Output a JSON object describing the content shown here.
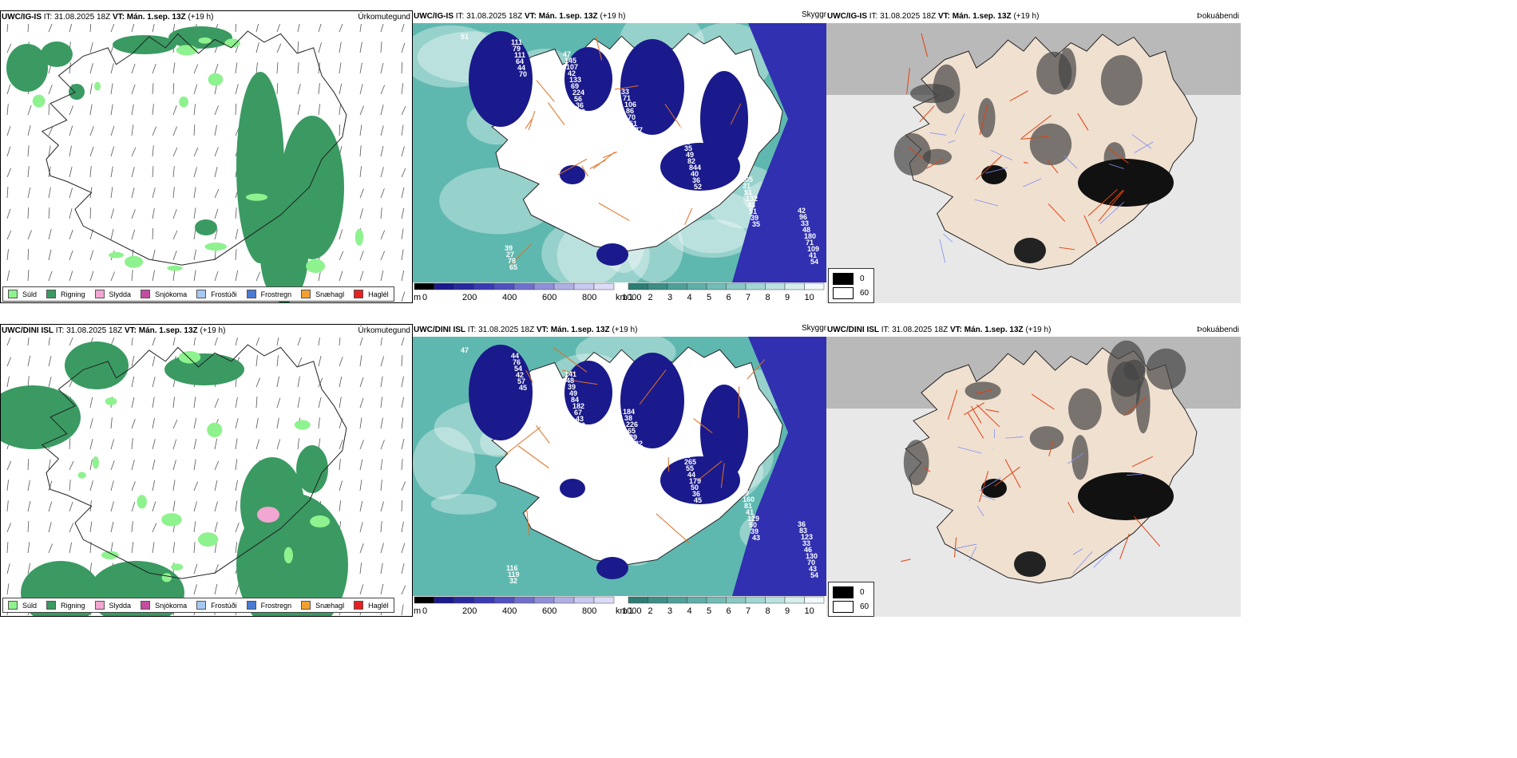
{
  "rows": [
    {
      "model": "UWC/IG-IS",
      "panels": [
        {
          "id": "precip",
          "model": "UWC/IG-IS",
          "init": "IT: 31.08.2025 18Z",
          "valid_label": "VT:",
          "valid": "Mán. 1.sep. 13Z",
          "lead": "(+19 h)",
          "product": "Úrkomutegund"
        },
        {
          "id": "vis",
          "model": "UWC/IG-IS",
          "init": "IT: 31.08.2025 18Z",
          "valid_label": "VT:",
          "valid": "Mán. 1.sep. 13Z",
          "lead": "(+19 h)",
          "product": "Skyggni"
        },
        {
          "id": "cloud",
          "model": "UWC/IG-IS",
          "init": "IT: 31.08.2025 18Z",
          "valid_label": "VT:",
          "valid": "Mán. 1.sep. 13Z",
          "lead": "(+19 h)",
          "product": "Þokuábendi"
        }
      ],
      "vis_labels": [
        "51",
        "70",
        "49",
        "42",
        "52",
        "35",
        "54",
        "44",
        "36",
        "48",
        "36",
        "39",
        "41",
        "64",
        "56",
        "39",
        "40",
        "51",
        "109",
        "111",
        "224",
        "277",
        "844",
        "43",
        "71",
        "79",
        "69",
        "51",
        "82",
        "132",
        "180",
        "111",
        "133",
        "70",
        "49",
        "51",
        "48",
        "65",
        "42",
        "86",
        "35",
        "31",
        "33",
        "78",
        "107",
        "106",
        "75",
        "105",
        "96",
        "27",
        "145",
        "71",
        "34",
        "62",
        "42",
        "39",
        "47",
        "33",
        "53"
      ]
    },
    {
      "model": "UWC/DINI ISL",
      "panels": [
        {
          "id": "precip",
          "model": "UWC/DINI ISL",
          "init": "IT: 31.08.2025 18Z",
          "valid_label": "VT:",
          "valid": "Mán. 1.sep. 13Z",
          "lead": "(+19 h)",
          "product": "Úrkomutegund"
        },
        {
          "id": "vis",
          "model": "UWC/DINI ISL",
          "init": "IT: 31.08.2025 18Z",
          "valid_label": "VT:",
          "valid": "Mán. 1.sep. 13Z",
          "lead": "(+19 h)",
          "product": "Skyggni"
        },
        {
          "id": "cloud",
          "model": "UWC/DINI ISL",
          "init": "IT: 31.08.2025 18Z",
          "valid_label": "VT:",
          "valid": "Mán. 1.sep. 13Z",
          "lead": "(+19 h)",
          "product": "Þokuábendi"
        }
      ],
      "vis_labels": [
        "47",
        "45",
        "40",
        "52",
        "45",
        "43",
        "54",
        "57",
        "43",
        "43",
        "36",
        "39",
        "43",
        "42",
        "67",
        "54",
        "50",
        "50",
        "70",
        "54",
        "182",
        "132",
        "179",
        "129",
        "130",
        "76",
        "84",
        "39",
        "44",
        "41",
        "46",
        "44",
        "49",
        "65",
        "55",
        "81",
        "33",
        "32",
        "39",
        "226",
        "265",
        "160",
        "123",
        "119",
        "48",
        "38",
        "46",
        "49",
        "83",
        "116",
        "141",
        "184",
        "39",
        "39",
        "36"
      ]
    }
  ],
  "precip_legend": [
    {
      "label": "Súld",
      "color": "#8ef28e"
    },
    {
      "label": "Rigning",
      "color": "#3a9a62"
    },
    {
      "label": "Slydda",
      "color": "#f2a6d2"
    },
    {
      "label": "Snjókoma",
      "color": "#c44ca0"
    },
    {
      "label": "Frostúði",
      "color": "#a6c8f2"
    },
    {
      "label": "Frostregn",
      "color": "#4a7ad2"
    },
    {
      "label": "Snæhagl",
      "color": "#f2a030"
    },
    {
      "label": "Haglél",
      "color": "#e82020"
    }
  ],
  "height_scale": {
    "unit": "m",
    "ticks": [
      "0",
      "200",
      "400",
      "600",
      "800",
      "1000"
    ]
  },
  "vis_scale": {
    "unit": "km",
    "ticks": [
      "1",
      "2",
      "3",
      "4",
      "5",
      "6",
      "7",
      "8",
      "9",
      "10"
    ]
  },
  "cloud_legend": {
    "max_label": "0",
    "min_label": "60"
  },
  "colors": {
    "rain": "#3a9a62",
    "drizzle": "#8ef28e",
    "sleet": "#f2a6d2",
    "vis_low": "#1a1a8c",
    "vis_sea": "#5fb8b0",
    "land": "#f0e0d0",
    "roads": "#e07020",
    "fog_dark": "#111111"
  }
}
